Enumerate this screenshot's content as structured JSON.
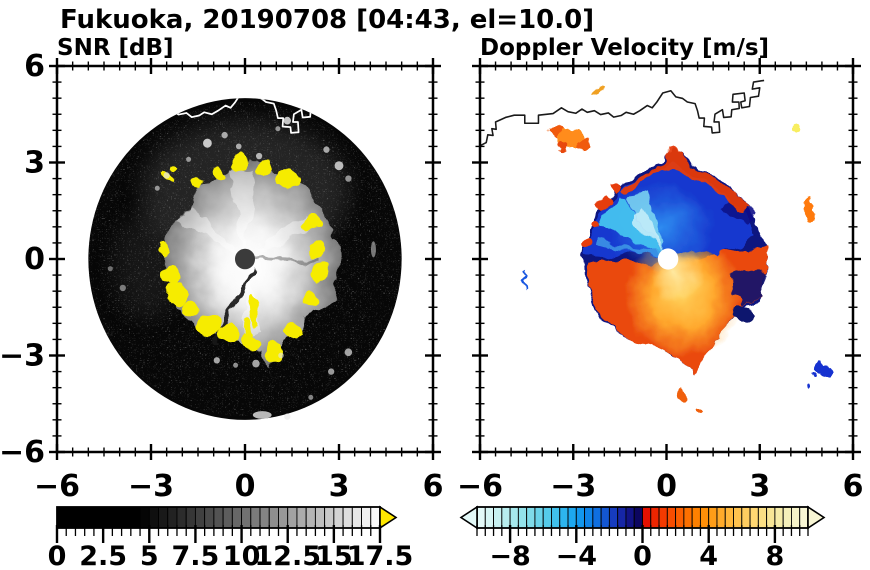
{
  "title": "Fukuoka, 20190708 [04:43, el=10.0]",
  "panels": [
    {
      "title": "SNR [dB]",
      "x_tick_values": [
        -6,
        -3,
        0,
        3,
        6
      ],
      "x_tick_labels": [
        "−6",
        "−3",
        "0",
        "3",
        "6"
      ],
      "y_tick_values": [
        6,
        3,
        0,
        -3,
        -6
      ],
      "y_tick_labels": [
        "6",
        "3",
        "0",
        "−3",
        "−6"
      ],
      "minor_tick_step": 0.5,
      "colorbar": {
        "min": 0,
        "max": 17.5,
        "major_tick_values": [
          0,
          2.5,
          5,
          7.5,
          10,
          12.5,
          15,
          17.5
        ],
        "major_tick_labels": [
          "0",
          "2.5",
          "5",
          "7.5",
          "10",
          "12.5",
          "15",
          "17.5"
        ],
        "minor_tick_step": 0.5,
        "over_arrow_color": "#ffe800",
        "colors": [
          "#000000",
          "#000000",
          "#000000",
          "#000000",
          "#000000",
          "#000000",
          "#000000",
          "#000000",
          "#000000",
          "#050505",
          "#0f0f0f",
          "#191919",
          "#222222",
          "#2c2c2c",
          "#363636",
          "#404040",
          "#4a4a4a",
          "#535353",
          "#5d5d5d",
          "#676767",
          "#717171",
          "#7b7b7b",
          "#848484",
          "#8e8e8e",
          "#989898",
          "#a2a2a2",
          "#acacac",
          "#b5b5b5",
          "#bfbfbf",
          "#c9c9c9",
          "#d3d3d3",
          "#dddddd",
          "#e6e6e6",
          "#f0f0f0",
          "#fafafa"
        ]
      }
    },
    {
      "title": "Doppler Velocity [m/s]",
      "x_tick_values": [
        -6,
        -3,
        0,
        3,
        6
      ],
      "x_tick_labels": [
        "−6",
        "−3",
        "0",
        "3",
        "6"
      ],
      "y_tick_values": [
        6,
        3,
        0,
        -3,
        -6
      ],
      "y_tick_labels": [
        "6",
        "3",
        "0",
        "−3",
        "−6"
      ],
      "minor_tick_step": 0.5,
      "colorbar": {
        "min": -10,
        "max": 10,
        "major_tick_values": [
          -8,
          -4,
          0,
          4,
          8
        ],
        "major_tick_labels": [
          "−8",
          "−4",
          "0",
          "4",
          "8"
        ],
        "minor_tick_step": 0.5,
        "under_arrow_color": "#e3f9f8",
        "over_arrow_color": "#f8f6d4",
        "colors": [
          "#e3f9f8",
          "#d6f5f4",
          "#c7f1f1",
          "#b7edee",
          "#a6e8ec",
          "#93e2ea",
          "#7fdbe9",
          "#6ad3e9",
          "#55cbea",
          "#40c1ec",
          "#2db5ee",
          "#1da8f0",
          "#1297ee",
          "#0e84e9",
          "#0f6fe0",
          "#1356d2",
          "#163cbf",
          "#1626a6",
          "#121385",
          "#0c0660",
          "#e31000",
          "#ee2500",
          "#f43a00",
          "#f84d00",
          "#fb5f00",
          "#fd7000",
          "#fe8000",
          "#ff8f08",
          "#ff9d18",
          "#ffaa2a",
          "#ffb73c",
          "#ffc24e",
          "#ffcd60",
          "#ffd772",
          "#fbdf84",
          "#f8e696",
          "#f6eca8",
          "#f5f0ba",
          "#f6f3c8",
          "#f8f6d4"
        ]
      }
    }
  ],
  "chart_data": [
    {
      "type": "heatmap",
      "title": "SNR [dB]",
      "xlim": [
        -6,
        6
      ],
      "ylim": [
        -6,
        6
      ],
      "x_ticks": [
        -6,
        -3,
        0,
        3,
        6
      ],
      "y_ticks": [
        -6,
        -3,
        0,
        3,
        6
      ],
      "minor_tick_step": 0.5,
      "colorbar_range": [
        0,
        17.5
      ],
      "colorbar_ticks": [
        0,
        2.5,
        5,
        7.5,
        10,
        12.5,
        15,
        17.5
      ],
      "colormap": "black-to-white grayscale with yellow over-range arrow",
      "description": "Radar PPI scan disk of radius ~5 centered on the radar site: dark noise-speckled background, bright precipitation echo blob (radius ~2.5-3) around the center with saturated yellow fringes where SNR exceeds 17.5 dB, scattered white point clutter, white coastline overlay across the top of the disk, dark gray dot at the radar location"
    },
    {
      "type": "heatmap",
      "title": "Doppler Velocity [m/s]",
      "xlim": [
        -6,
        6
      ],
      "ylim": [
        -6,
        6
      ],
      "x_ticks": [
        -6,
        -3,
        0,
        3,
        6
      ],
      "y_ticks": [
        -6,
        -3,
        0,
        3,
        6
      ],
      "minor_tick_step": 0.5,
      "colorbar_range": [
        -10,
        10
      ],
      "colorbar_ticks": [
        -8,
        -4,
        0,
        4,
        8
      ],
      "colormap": "diverging: pale cyan → blue → dark navy | red → orange → pale yellow, arrows both ends",
      "description": "Same echo region colored by Doppler velocity on a white background: negative velocities (blue/cyan, toward radar) over the upper-left/northern half with a bright cyan wedge near the center, positive velocities (red/orange/yellow, away from radar) over the lower/southern half and eastern side, ragged navy-and-red mixed edges, white dot at the radar site, black coastline with blocky harbor islands along the top, a few isolated orange and blue echoes scattered around"
    }
  ]
}
